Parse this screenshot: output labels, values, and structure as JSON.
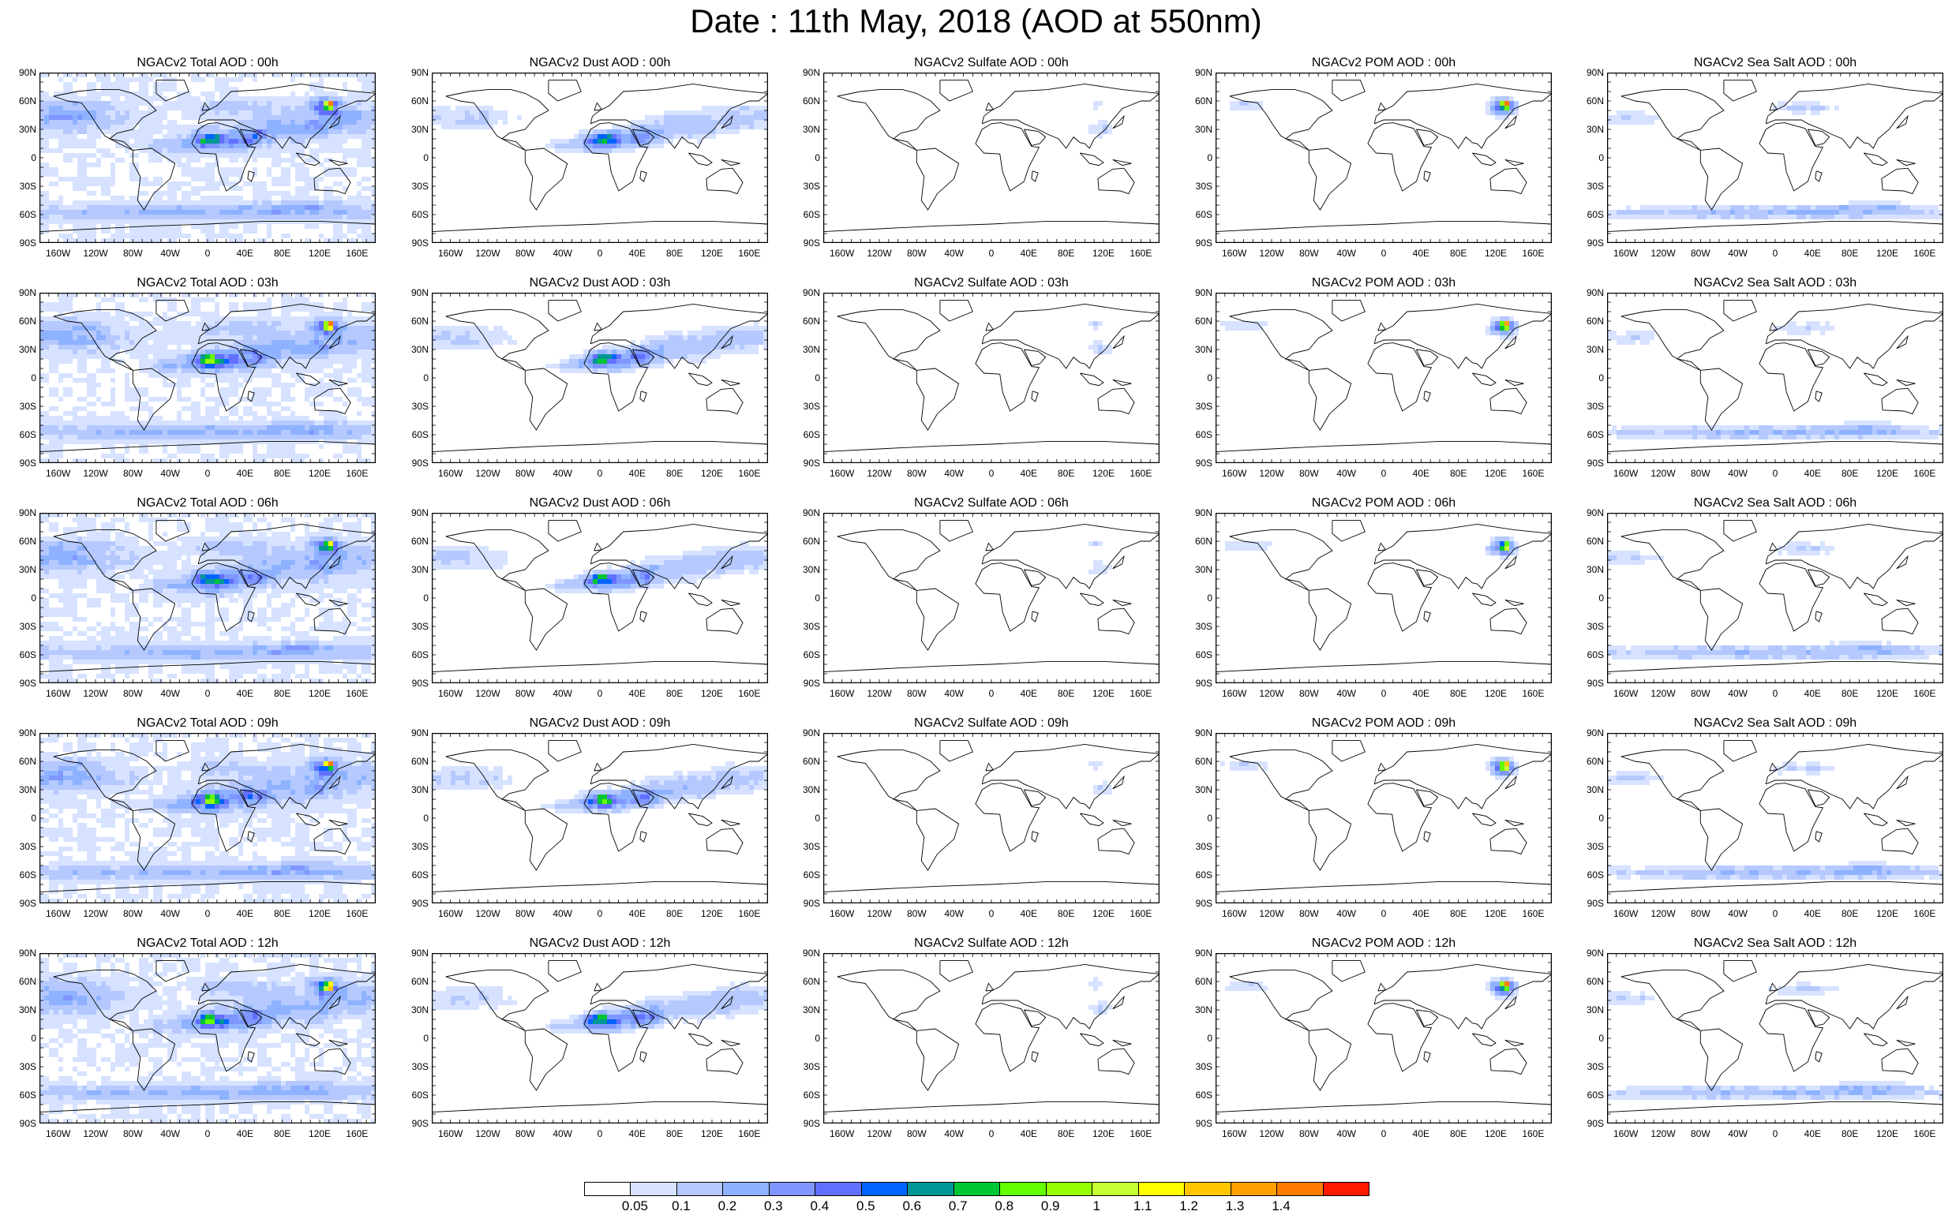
{
  "title": "Date : 11th May, 2018 (AOD at 550nm)",
  "panels": [
    {
      "title": "NGACv2 Total AOD : 00h",
      "field": "total"
    },
    {
      "title": "NGACv2 Dust AOD : 00h",
      "field": "dust"
    },
    {
      "title": "NGACv2 Sulfate AOD : 00h",
      "field": "sulfate"
    },
    {
      "title": "NGACv2 POM AOD : 00h",
      "field": "pom"
    },
    {
      "title": "NGACv2 Sea Salt AOD : 00h",
      "field": "seasalt"
    },
    {
      "title": "NGACv2 Total AOD : 03h",
      "field": "total"
    },
    {
      "title": "NGACv2 Dust AOD : 03h",
      "field": "dust"
    },
    {
      "title": "NGACv2 Sulfate AOD : 03h",
      "field": "sulfate"
    },
    {
      "title": "NGACv2 POM AOD : 03h",
      "field": "pom"
    },
    {
      "title": "NGACv2 Sea Salt AOD : 03h",
      "field": "seasalt"
    },
    {
      "title": "NGACv2 Total AOD : 06h",
      "field": "total"
    },
    {
      "title": "NGACv2 Dust AOD : 06h",
      "field": "dust"
    },
    {
      "title": "NGACv2 Sulfate AOD : 06h",
      "field": "sulfate"
    },
    {
      "title": "NGACv2 POM AOD : 06h",
      "field": "pom"
    },
    {
      "title": "NGACv2 Sea Salt AOD : 06h",
      "field": "seasalt"
    },
    {
      "title": "NGACv2 Total AOD : 09h",
      "field": "total"
    },
    {
      "title": "NGACv2 Dust AOD : 09h",
      "field": "dust"
    },
    {
      "title": "NGACv2 Sulfate AOD : 09h",
      "field": "sulfate"
    },
    {
      "title": "NGACv2 POM AOD : 09h",
      "field": "pom"
    },
    {
      "title": "NGACv2 Sea Salt  AOD : 09h",
      "field": "seasalt"
    },
    {
      "title": "NGACv2 Total AOD  : 12h",
      "field": "total"
    },
    {
      "title": "NGACv2 Dust AOD : 12h",
      "field": "dust"
    },
    {
      "title": "NGACv2 Sulfate AOD : 12h",
      "field": "sulfate"
    },
    {
      "title": "NGACv2 POM  AOD : 12h",
      "field": "pom"
    },
    {
      "title": "NGACv2 Sea Salt AOD : 12h",
      "field": "seasalt"
    }
  ],
  "lat_labels": [
    "90N",
    "60N",
    "30N",
    "0",
    "30S",
    "60S",
    "90S"
  ],
  "lon_labels": [
    "160W",
    "120W",
    "80W",
    "40W",
    "0",
    "40E",
    "80E",
    "120E",
    "160E"
  ],
  "colorbar": {
    "labels": [
      "0.05",
      "0.1",
      "0.2",
      "0.3",
      "0.4",
      "0.5",
      "0.6",
      "0.7",
      "0.8",
      "0.9",
      "1",
      "1.1",
      "1.2",
      "1.3",
      "1.4"
    ],
    "colors": [
      "#ffffff",
      "#d6e2ff",
      "#b5c9ff",
      "#8eb2ff",
      "#7f96ff",
      "#6370ff",
      "#0063ff",
      "#009696",
      "#00c633",
      "#63ff00",
      "#96ff00",
      "#c6ff33",
      "#ffff00",
      "#ffc600",
      "#ffa000",
      "#ff7c00",
      "#ff1900"
    ]
  },
  "map_colors": {
    "land_outline": "#000000",
    "ocean": "#ffffff"
  }
}
